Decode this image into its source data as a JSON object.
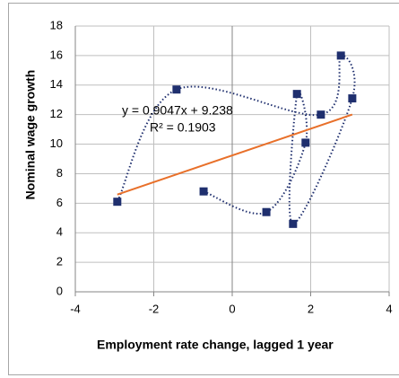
{
  "chart_data": {
    "type": "scatter",
    "x_label": "Employment rate change, lagged 1 year",
    "y_label": "Nominal wage growth",
    "x": [
      -0.73,
      0.87,
      1.87,
      1.65,
      1.55,
      3.06,
      2.77,
      2.26,
      -1.42,
      -2.93
    ],
    "values": [
      6.8,
      5.4,
      10.1,
      13.4,
      4.6,
      13.1,
      16.0,
      12.0,
      13.7,
      6.1
    ],
    "color": "#1f2f6e",
    "connector": "dotted",
    "trendline": {
      "slope": 0.9047,
      "intercept": 9.238,
      "color": "#e8702a",
      "equation": "y = 0.9047x + 9.238",
      "r_squared": "R² = 0.1903"
    },
    "xlim": [
      -4,
      4
    ],
    "xticks": [
      -4,
      -2,
      0,
      2,
      4
    ],
    "ylim": [
      0,
      18
    ],
    "yticks": [
      0,
      2,
      4,
      6,
      8,
      10,
      12,
      14,
      16,
      18
    ],
    "grid": true
  }
}
